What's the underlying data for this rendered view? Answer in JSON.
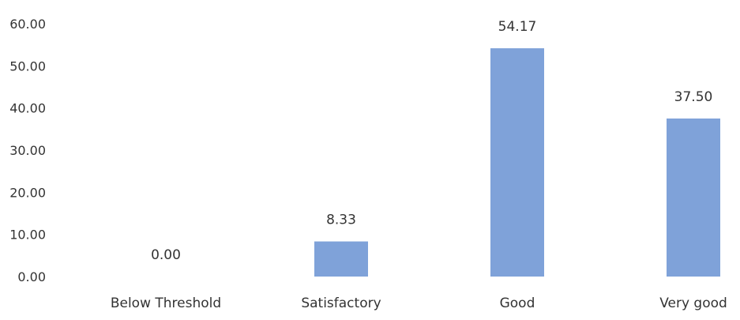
{
  "chart_data": {
    "type": "bar",
    "categories": [
      "Below Threshold",
      "Satisfactory",
      "Good",
      "Very good"
    ],
    "values": [
      0.0,
      8.33,
      54.17,
      37.5
    ],
    "data_labels": [
      "0.00",
      "8.33",
      "54.17",
      "37.50"
    ],
    "yticks": [
      "0.00",
      "10.00",
      "20.00",
      "30.00",
      "40.00",
      "50.00",
      "60.00"
    ],
    "ylim": [
      0,
      60
    ],
    "grid": false,
    "bar_color": "#7fa2d9"
  }
}
